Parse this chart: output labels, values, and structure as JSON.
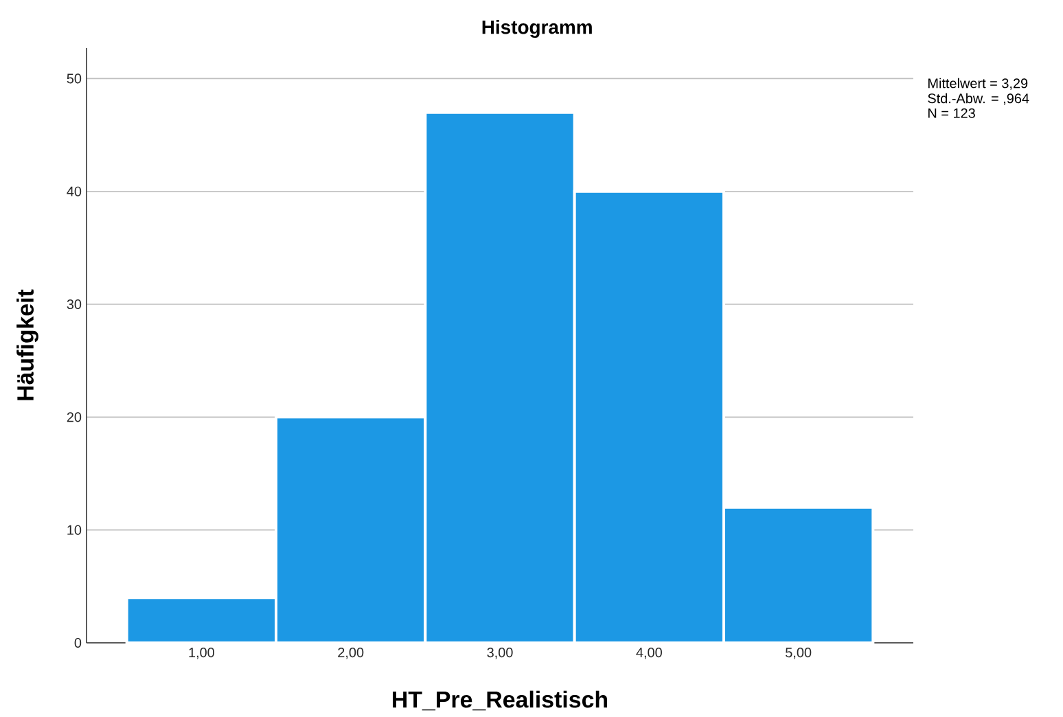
{
  "chart_data": {
    "type": "histogram",
    "title": "Histogramm",
    "xlabel": "HT_Pre_Realistisch",
    "ylabel": "Häufigkeit",
    "bins": [
      0.5,
      1.5,
      2.5,
      3.5,
      4.5,
      5.5
    ],
    "values": [
      4,
      20,
      47,
      40,
      12
    ],
    "color": "#1c98e4",
    "xlim": [
      0.23,
      5.77
    ],
    "xticks": [
      {
        "value": 1,
        "label": "1,00"
      },
      {
        "value": 2,
        "label": "2,00"
      },
      {
        "value": 3,
        "label": "3,00"
      },
      {
        "value": 4,
        "label": "4,00"
      },
      {
        "value": 5,
        "label": "5,00"
      }
    ],
    "ylim": [
      0,
      52.7
    ],
    "yticks": [
      0,
      10,
      20,
      30,
      40,
      50
    ],
    "grid": "y",
    "annotations": [
      "Mittelwert = 3,29",
      "Std.-Abw. = ,964",
      "N = 123"
    ]
  }
}
